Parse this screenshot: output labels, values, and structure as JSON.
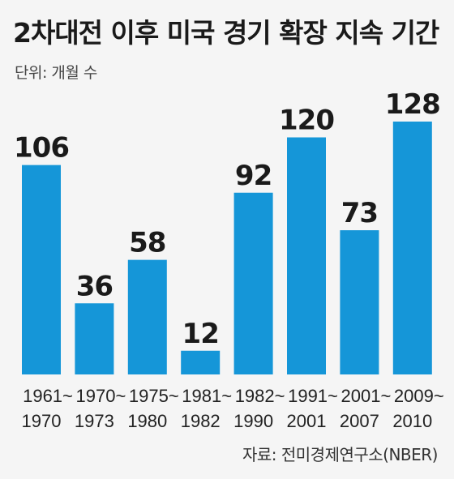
{
  "header": {
    "title": "2차대전 이후 미국 경기 확장 지속 기간",
    "unit": "단위: 개월 수"
  },
  "footer": {
    "source": "자료: 전미경제연구소(NBER)"
  },
  "chart_data": {
    "type": "bar",
    "title": "2차대전 이후 미국 경기 확장 지속 기간",
    "unit": "단위: 개월 수",
    "categories": [
      [
        "1961~",
        "1970"
      ],
      [
        "1970~",
        "1973"
      ],
      [
        "1975~",
        "1980"
      ],
      [
        "1981~",
        "1982"
      ],
      [
        "1982~",
        "1990"
      ],
      [
        "1991~",
        "2001"
      ],
      [
        "2001~",
        "2007"
      ],
      [
        "2009~",
        "2010"
      ]
    ],
    "values": [
      106,
      36,
      58,
      12,
      92,
      120,
      73,
      128
    ],
    "ylim": [
      0,
      128
    ],
    "grid": false,
    "legend": "none",
    "color": "#1596d8"
  }
}
